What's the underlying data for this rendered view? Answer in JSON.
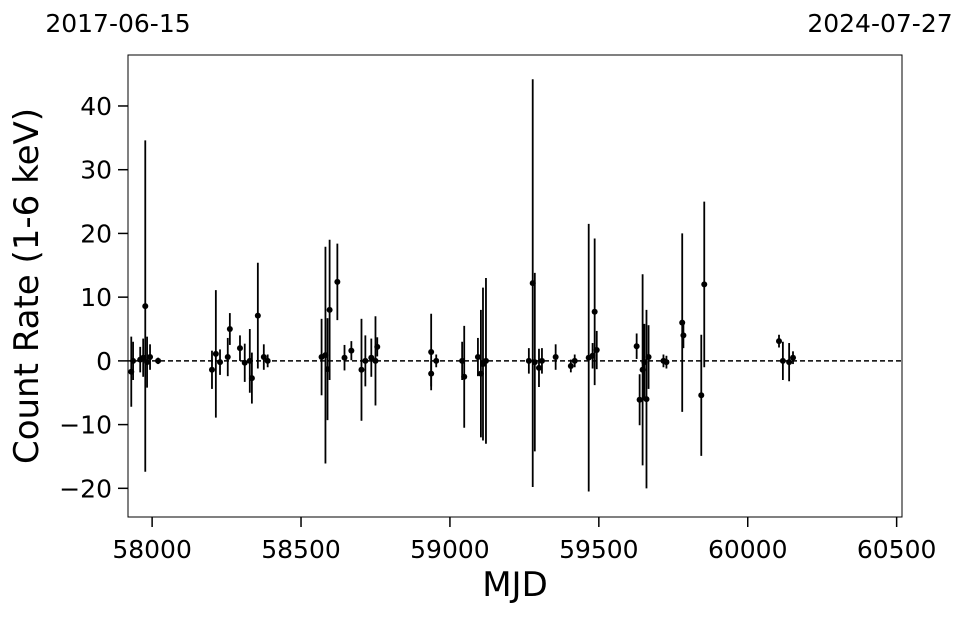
{
  "chart_data": {
    "type": "scatter",
    "xlabel": "MJD",
    "ylabel": "Count Rate (1-6 keV)",
    "xlim": [
      57919,
      60518
    ],
    "ylim": [
      -24.5,
      48
    ],
    "xticks": [
      58000,
      58500,
      59000,
      59500,
      60000,
      60500
    ],
    "yticks": [
      {
        "value": -20,
        "label": "−20"
      },
      {
        "value": -10,
        "label": "−10"
      },
      0,
      10,
      20,
      30,
      40
    ],
    "top_ticks": [
      {
        "value": 57919,
        "label": "2017-06-15"
      },
      {
        "value": 60518,
        "label": "2024-07-27"
      }
    ],
    "hline": 0,
    "color": "#000000",
    "series": [
      {
        "name": "Count Rate",
        "x": [
          57930,
          57936,
          57960,
          57970,
          57977,
          57983,
          57993,
          58020,
          58201,
          58214,
          58228,
          58254,
          58261,
          58295,
          58311,
          58328,
          58335,
          58355,
          58375,
          58388,
          58569,
          58582,
          58589,
          58596,
          58622,
          58646,
          58669,
          58703,
          58716,
          58736,
          58750,
          58756,
          58937,
          58937,
          58954,
          59041,
          59048,
          59094,
          59104,
          59111,
          59121,
          59265,
          59278,
          59285,
          59299,
          59309,
          59355,
          59406,
          59419,
          59466,
          59479,
          59486,
          59493,
          59627,
          59637,
          59647,
          59653,
          59660,
          59667,
          59717,
          59727,
          59780,
          59784,
          59844,
          59854,
          60105,
          60118,
          60139,
          60152
        ],
        "values": [
          -1.7,
          0,
          0.2,
          0.5,
          8.6,
          -0.2,
          0.6,
          0,
          -1.4,
          1.1,
          -0.2,
          0.6,
          5,
          2,
          -0.3,
          0,
          -2.7,
          7.1,
          0.6,
          0,
          0.6,
          0.9,
          -1.3,
          8,
          12.4,
          0.5,
          1.6,
          -1.4,
          0,
          0.5,
          0,
          2.2,
          1.4,
          -2,
          0,
          0,
          -2.5,
          0.6,
          -2,
          -0.5,
          0,
          0,
          12.2,
          -0.2,
          -1.1,
          0,
          0.6,
          -0.8,
          0,
          0.5,
          0.8,
          7.7,
          1.7,
          2.3,
          -6.1,
          -1.4,
          -0.2,
          -6,
          0.6,
          0,
          -0.2,
          6,
          4,
          -5.4,
          12,
          3.1,
          0,
          -0.2,
          0.5
        ],
        "yerr": [
          5.5,
          3,
          2,
          3,
          26,
          4,
          2,
          0.5,
          3,
          10,
          2,
          3,
          2.5,
          2,
          3,
          5,
          4,
          8.3,
          2,
          1,
          6,
          17,
          8,
          11,
          6,
          2,
          1.5,
          8,
          4,
          3,
          7,
          1.5,
          6,
          2,
          1,
          3,
          8,
          3,
          10,
          12,
          13,
          2,
          32,
          14,
          3,
          2,
          2,
          1,
          1,
          21,
          2,
          11.5,
          3,
          2,
          4,
          15,
          6,
          14,
          5,
          1,
          1,
          14,
          2,
          9.5,
          13,
          1,
          3,
          3,
          1
        ]
      }
    ]
  }
}
